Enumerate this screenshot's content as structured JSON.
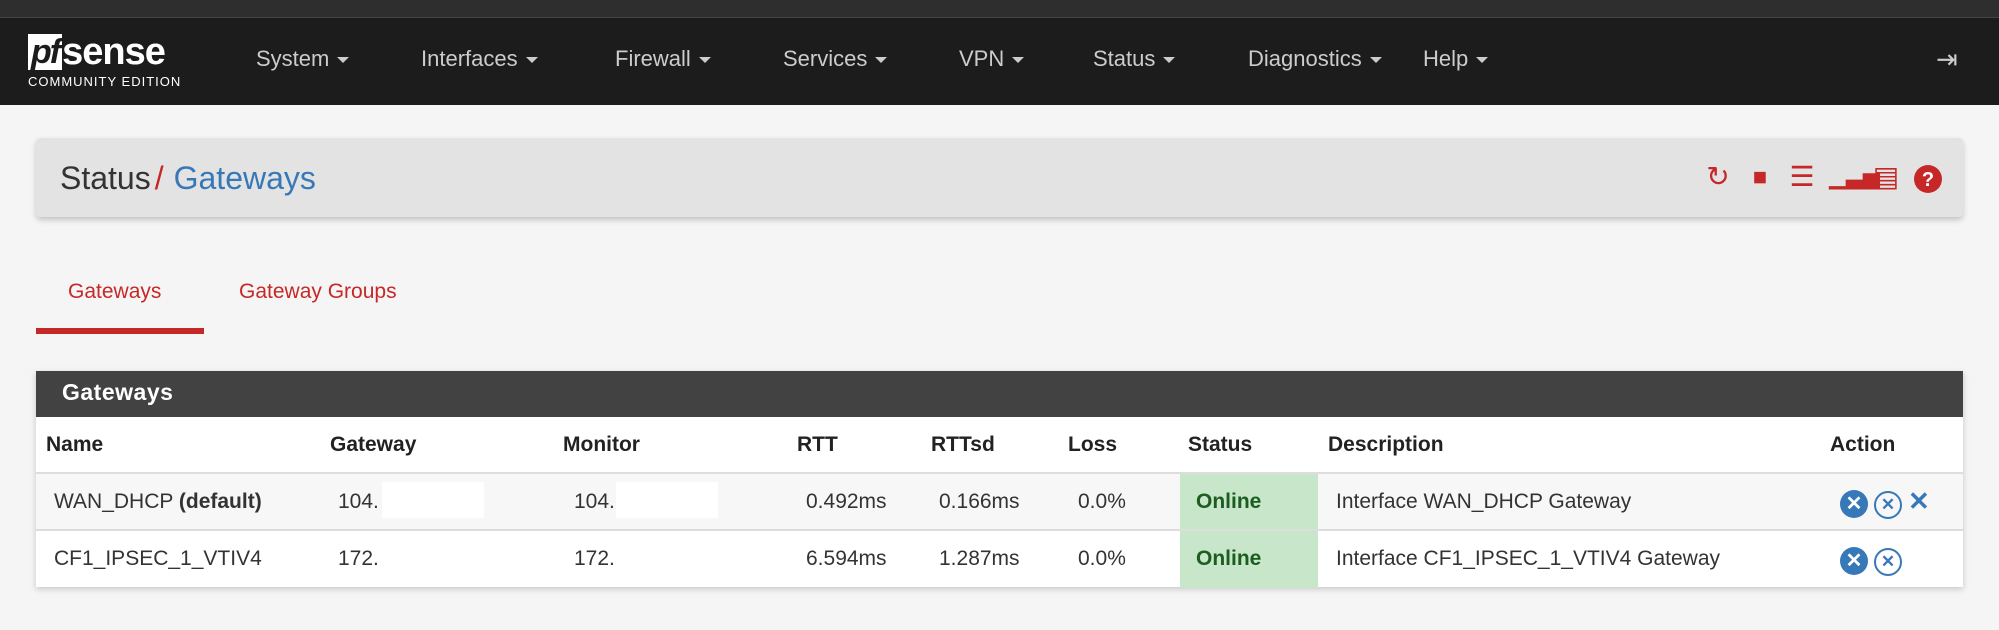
{
  "brand": {
    "logo_text": "pfsense",
    "edition": "COMMUNITY EDITION"
  },
  "nav": [
    {
      "label": "System"
    },
    {
      "label": "Interfaces"
    },
    {
      "label": "Firewall"
    },
    {
      "label": "Services"
    },
    {
      "label": "VPN"
    },
    {
      "label": "Status"
    },
    {
      "label": "Diagnostics"
    },
    {
      "label": "Help"
    }
  ],
  "nav_logout_icon": "sign-out-icon",
  "breadcrumb": {
    "parent": "Status",
    "separator": "/",
    "current": "Gateways"
  },
  "toolbar_icons": [
    "reload-icon",
    "stop-icon",
    "sliders-icon",
    "bar-chart-icon",
    "list-icon",
    "help-icon"
  ],
  "tabs": [
    {
      "label": "Gateways",
      "active": true
    },
    {
      "label": "Gateway Groups",
      "active": false
    }
  ],
  "panel": {
    "title": "Gateways"
  },
  "table": {
    "headers": [
      "Name",
      "Gateway",
      "Monitor",
      "RTT",
      "RTTsd",
      "Loss",
      "Status",
      "Description",
      "Action"
    ],
    "rows": [
      {
        "name": "WAN_DHCP",
        "name_suffix": "(default)",
        "gateway": "104.",
        "monitor": "104.",
        "rtt": "0.492ms",
        "rttsd": "0.166ms",
        "loss": "0.0%",
        "status": "Online",
        "description": "Interface WAN_DHCP Gateway"
      },
      {
        "name": "CF1_IPSEC_1_VTIV4",
        "name_suffix": "",
        "gateway": "172.",
        "monitor": "172.",
        "rtt": "6.594ms",
        "rttsd": "1.287ms",
        "loss": "0.0%",
        "status": "Online",
        "description": "Interface CF1_IPSEC_1_VTIV4 Gateway"
      }
    ]
  },
  "colors": {
    "accent": "#c62828",
    "link": "#3778b8",
    "online_bg": "#c8e6c9",
    "online_text": "#1b5e20",
    "navbar": "#1c1c1c"
  }
}
